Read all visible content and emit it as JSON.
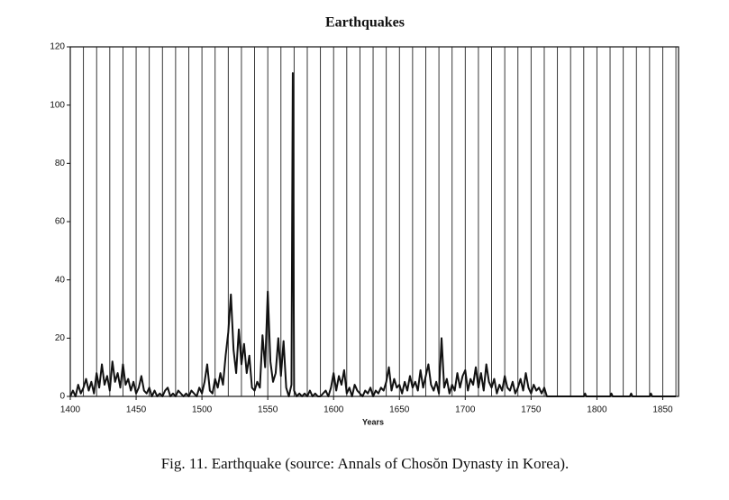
{
  "chart_data": {
    "type": "line",
    "title": "Earthquakes",
    "x_label": "Years",
    "caption": "Fig. 11. Earthquake (source: Annals of Chosŏn Dynasty in Korea).",
    "x": [
      1400,
      1402,
      1404,
      1406,
      1408,
      1410,
      1412,
      1414,
      1416,
      1418,
      1420,
      1422,
      1424,
      1426,
      1428,
      1430,
      1432,
      1434,
      1436,
      1438,
      1440,
      1442,
      1444,
      1446,
      1448,
      1450,
      1452,
      1454,
      1456,
      1458,
      1460,
      1462,
      1464,
      1466,
      1468,
      1470,
      1472,
      1474,
      1476,
      1478,
      1480,
      1482,
      1484,
      1486,
      1488,
      1490,
      1492,
      1494,
      1496,
      1498,
      1500,
      1502,
      1504,
      1506,
      1508,
      1510,
      1512,
      1514,
      1516,
      1518,
      1520,
      1522,
      1524,
      1526,
      1528,
      1530,
      1532,
      1534,
      1536,
      1538,
      1540,
      1542,
      1544,
      1546,
      1548,
      1550,
      1552,
      1554,
      1556,
      1558,
      1560,
      1562,
      1564,
      1566,
      1568,
      1569,
      1570,
      1572,
      1574,
      1576,
      1578,
      1580,
      1582,
      1584,
      1586,
      1588,
      1590,
      1592,
      1594,
      1596,
      1598,
      1600,
      1602,
      1604,
      1606,
      1608,
      1610,
      1612,
      1614,
      1616,
      1618,
      1620,
      1622,
      1624,
      1626,
      1628,
      1630,
      1632,
      1634,
      1636,
      1638,
      1640,
      1642,
      1644,
      1646,
      1648,
      1650,
      1652,
      1654,
      1656,
      1658,
      1660,
      1662,
      1664,
      1666,
      1668,
      1670,
      1672,
      1674,
      1676,
      1678,
      1680,
      1682,
      1684,
      1686,
      1688,
      1690,
      1692,
      1694,
      1696,
      1698,
      1700,
      1702,
      1704,
      1706,
      1708,
      1710,
      1712,
      1714,
      1716,
      1718,
      1720,
      1722,
      1724,
      1726,
      1728,
      1730,
      1732,
      1734,
      1736,
      1738,
      1740,
      1742,
      1744,
      1746,
      1748,
      1750,
      1752,
      1754,
      1756,
      1758,
      1760,
      1762,
      1764,
      1790,
      1791,
      1792,
      1810,
      1811,
      1812,
      1825,
      1826,
      1827,
      1840,
      1841,
      1842,
      1860
    ],
    "series": [
      {
        "name": "Earthquakes",
        "color": "#111111",
        "values": [
          0,
          2,
          0,
          4,
          1,
          3,
          6,
          2,
          5,
          1,
          8,
          3,
          11,
          4,
          7,
          2,
          12,
          5,
          8,
          3,
          11,
          4,
          6,
          2,
          5,
          1,
          3,
          7,
          2,
          1,
          3,
          0,
          2,
          0,
          1,
          0,
          2,
          3,
          0,
          1,
          0,
          2,
          1,
          0,
          1,
          0,
          2,
          1,
          0,
          3,
          1,
          5,
          11,
          2,
          1,
          6,
          3,
          8,
          4,
          14,
          22,
          35,
          16,
          8,
          23,
          11,
          18,
          8,
          14,
          3,
          2,
          5,
          3,
          21,
          10,
          36,
          12,
          5,
          8,
          20,
          7,
          19,
          3,
          0,
          4,
          111,
          2,
          0,
          1,
          0,
          1,
          0,
          2,
          0,
          1,
          0,
          0,
          1,
          2,
          0,
          3,
          8,
          2,
          7,
          4,
          9,
          1,
          3,
          0,
          4,
          2,
          1,
          0,
          2,
          1,
          3,
          0,
          2,
          1,
          3,
          2,
          5,
          10,
          2,
          6,
          3,
          4,
          1,
          5,
          2,
          7,
          3,
          5,
          2,
          9,
          3,
          7,
          11,
          4,
          2,
          5,
          1,
          20,
          3,
          6,
          1,
          4,
          2,
          8,
          3,
          7,
          9,
          2,
          6,
          4,
          10,
          3,
          8,
          2,
          11,
          5,
          3,
          6,
          1,
          4,
          2,
          7,
          3,
          2,
          5,
          1,
          3,
          6,
          2,
          8,
          3,
          1,
          4,
          2,
          3,
          1,
          3,
          0,
          0,
          0,
          1,
          0,
          0,
          1,
          0,
          0,
          1,
          0,
          0,
          1,
          0,
          0
        ]
      }
    ],
    "xlim": [
      1400,
      1862
    ],
    "ylim": [
      0,
      120
    ],
    "xticks": [
      1400,
      1450,
      1500,
      1550,
      1600,
      1650,
      1700,
      1750,
      1800,
      1850
    ],
    "yticks": [
      0,
      20,
      40,
      60,
      80,
      100,
      120
    ],
    "xgrid": [
      1410,
      1420,
      1430,
      1440,
      1450,
      1460,
      1470,
      1480,
      1490,
      1500,
      1510,
      1520,
      1530,
      1540,
      1550,
      1560,
      1570,
      1580,
      1590,
      1600,
      1610,
      1620,
      1630,
      1640,
      1650,
      1660,
      1670,
      1680,
      1690,
      1700,
      1710,
      1720,
      1730,
      1740,
      1750,
      1760,
      1770,
      1780,
      1790,
      1800,
      1810,
      1820,
      1830,
      1840,
      1850,
      1860
    ]
  }
}
